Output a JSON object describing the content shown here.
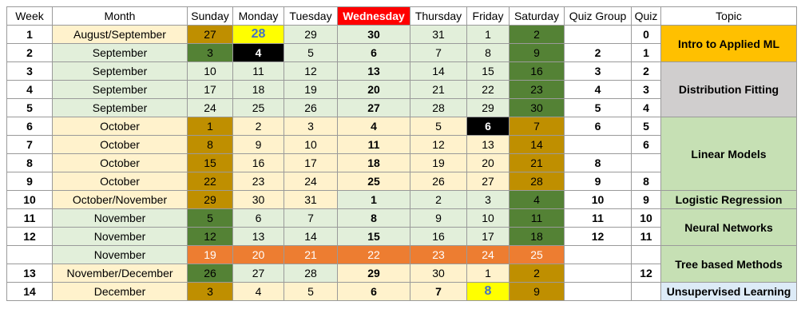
{
  "headers": [
    "Week",
    "Month",
    "Sunday",
    "Monday",
    "Tuesday",
    "Wednesday",
    "Thursday",
    "Friday",
    "Saturday",
    "Quiz Group",
    "Quiz",
    "Topic"
  ],
  "colors": {
    "green_light": "#e2efda",
    "cream": "#fff2cc",
    "tan": "#bf8f00",
    "green_dark": "#548235",
    "black": "#000000",
    "yellow": "#ffff00",
    "orange": "#ed7d31",
    "topic_orange": "#ffc000",
    "topic_gray": "#d0cece",
    "topic_green": "#c6e0b4",
    "topic_blue": "#ddebf7",
    "header_red": "#ff0000"
  },
  "rows": [
    {
      "week": "1",
      "month": "August/September",
      "days": [
        "27",
        "28",
        "29",
        "30",
        "31",
        "1",
        "2"
      ],
      "quiz_group": "",
      "quiz": "0"
    },
    {
      "week": "2",
      "month": "September",
      "days": [
        "3",
        "4",
        "5",
        "6",
        "7",
        "8",
        "9"
      ],
      "quiz_group": "2",
      "quiz": "1"
    },
    {
      "week": "3",
      "month": "September",
      "days": [
        "10",
        "11",
        "12",
        "13",
        "14",
        "15",
        "16"
      ],
      "quiz_group": "3",
      "quiz": "2"
    },
    {
      "week": "4",
      "month": "September",
      "days": [
        "17",
        "18",
        "19",
        "20",
        "21",
        "22",
        "23"
      ],
      "quiz_group": "4",
      "quiz": "3"
    },
    {
      "week": "5",
      "month": "September",
      "days": [
        "24",
        "25",
        "26",
        "27",
        "28",
        "29",
        "30"
      ],
      "quiz_group": "5",
      "quiz": "4"
    },
    {
      "week": "6",
      "month": "October",
      "days": [
        "1",
        "2",
        "3",
        "4",
        "5",
        "6",
        "7"
      ],
      "quiz_group": "6",
      "quiz": "5"
    },
    {
      "week": "7",
      "month": "October",
      "days": [
        "8",
        "9",
        "10",
        "11",
        "12",
        "13",
        "14"
      ],
      "quiz_group": "",
      "quiz": "6"
    },
    {
      "week": "8",
      "month": "October",
      "days": [
        "15",
        "16",
        "17",
        "18",
        "19",
        "20",
        "21"
      ],
      "quiz_group": "8",
      "quiz": ""
    },
    {
      "week": "9",
      "month": "October",
      "days": [
        "22",
        "23",
        "24",
        "25",
        "26",
        "27",
        "28"
      ],
      "quiz_group": "9",
      "quiz": "8"
    },
    {
      "week": "10",
      "month": "October/November",
      "days": [
        "29",
        "30",
        "31",
        "1",
        "2",
        "3",
        "4"
      ],
      "quiz_group": "10",
      "quiz": "9"
    },
    {
      "week": "11",
      "month": "November",
      "days": [
        "5",
        "6",
        "7",
        "8",
        "9",
        "10",
        "11"
      ],
      "quiz_group": "11",
      "quiz": "10"
    },
    {
      "week": "12",
      "month": "November",
      "days": [
        "12",
        "13",
        "14",
        "15",
        "16",
        "17",
        "18"
      ],
      "quiz_group": "12",
      "quiz": "11"
    },
    {
      "week": "",
      "month": "November",
      "days": [
        "19",
        "20",
        "21",
        "22",
        "23",
        "24",
        "25"
      ],
      "quiz_group": "",
      "quiz": ""
    },
    {
      "week": "13",
      "month": "November/December",
      "days": [
        "26",
        "27",
        "28",
        "29",
        "30",
        "1",
        "2"
      ],
      "quiz_group": "",
      "quiz": "12"
    },
    {
      "week": "14",
      "month": "December",
      "days": [
        "3",
        "4",
        "5",
        "6",
        "7",
        "8",
        "9"
      ],
      "quiz_group": "",
      "quiz": ""
    }
  ],
  "topics": [
    {
      "label": "Intro to Applied ML",
      "start": 0,
      "span": 2,
      "color": "#ffc000"
    },
    {
      "label": "Distribution Fitting",
      "start": 2,
      "span": 3,
      "color": "#d0cece"
    },
    {
      "label": "Linear Models",
      "start": 5,
      "span": 4,
      "color": "#c6e0b4"
    },
    {
      "label": "Logistic Regression",
      "start": 9,
      "span": 1,
      "color": "#c6e0b4"
    },
    {
      "label": "Neural Networks",
      "start": 10,
      "span": 2,
      "color": "#c6e0b4"
    },
    {
      "label": "Tree based Methods",
      "start": 12,
      "span": 2,
      "color": "#c6e0b4"
    },
    {
      "label": "Unsupervised Learning",
      "start": 14,
      "span": 1,
      "color": "#ddebf7"
    }
  ]
}
